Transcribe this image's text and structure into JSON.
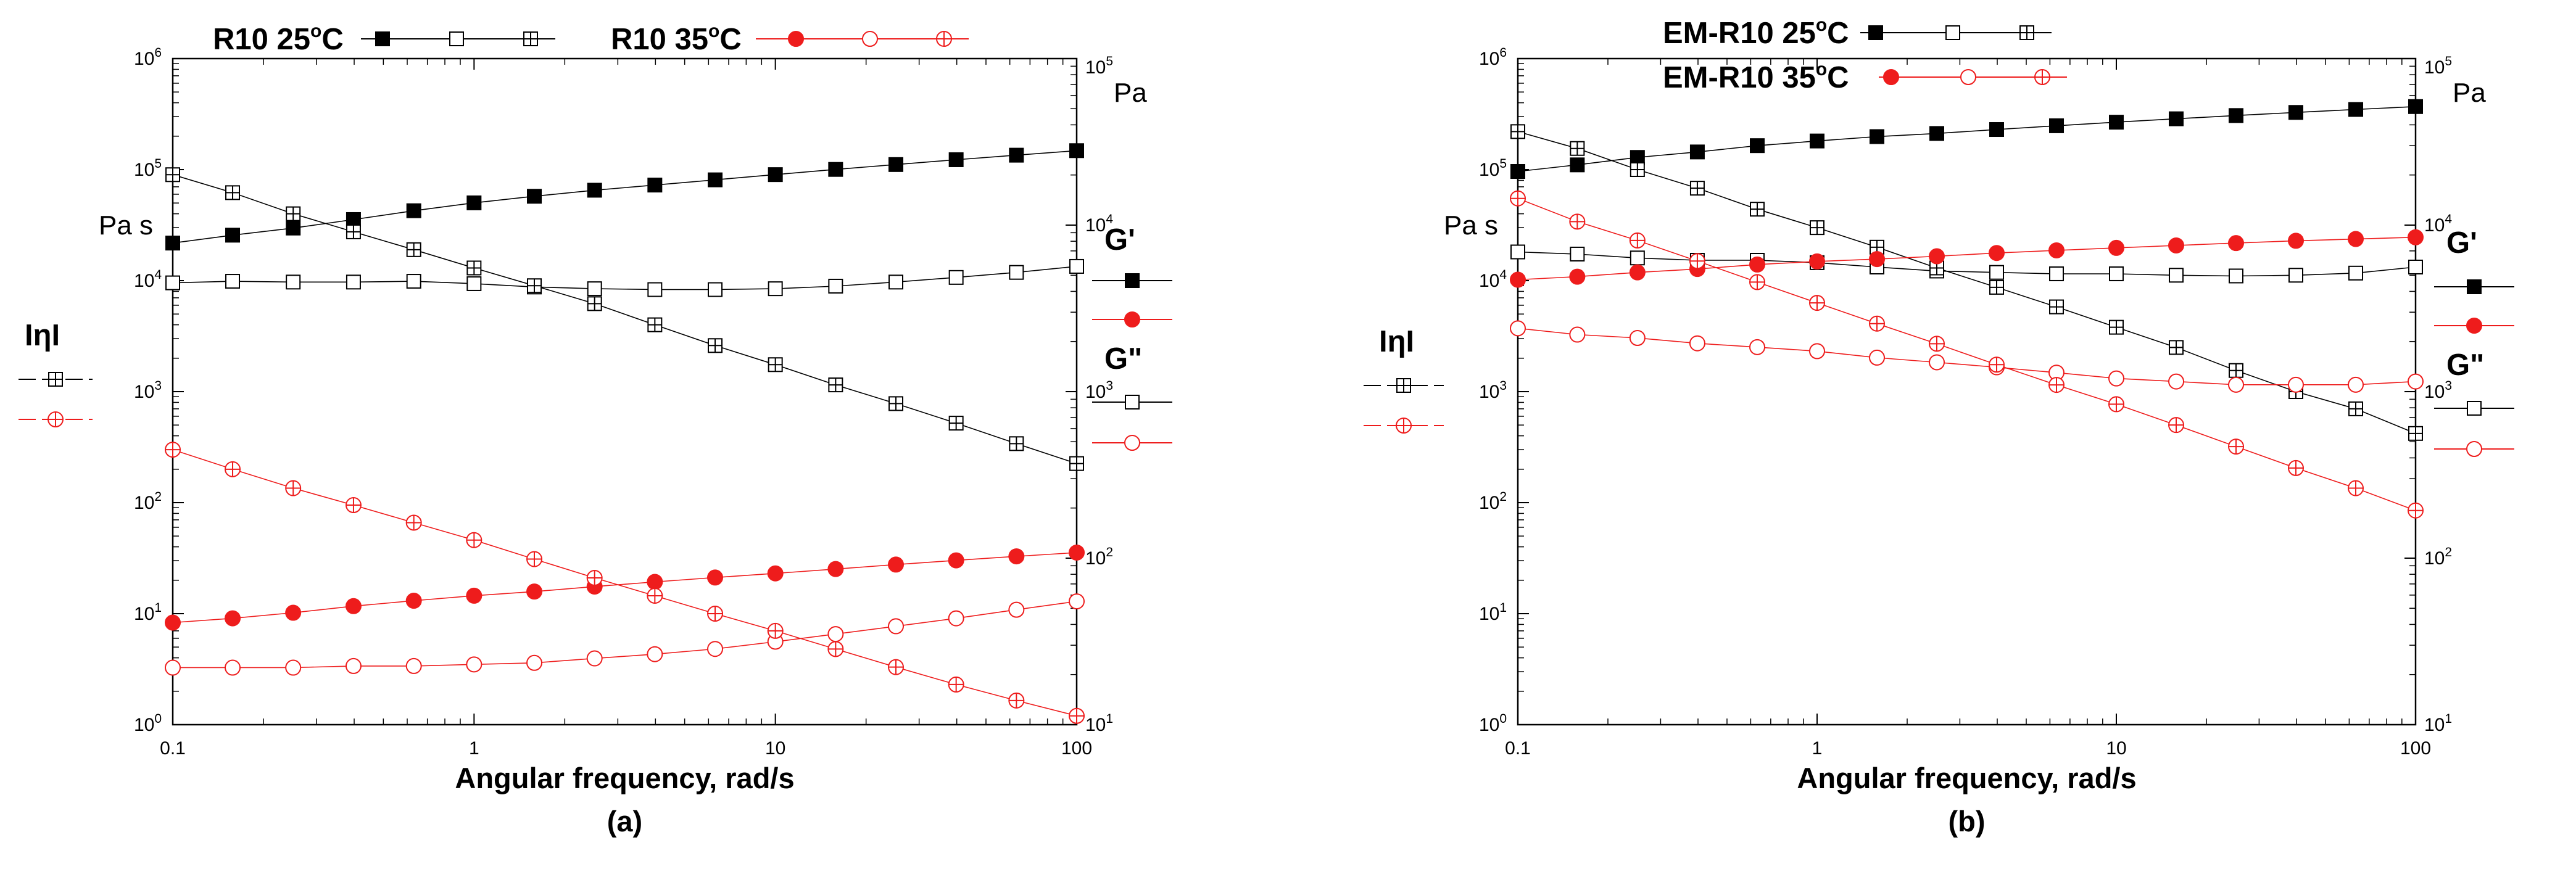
{
  "chart_data": [
    {
      "type": "line",
      "panel_label": "(a)",
      "xlabel": "Angular frequency, rad/s",
      "x_scale": "log",
      "xlim": [
        0.1,
        100
      ],
      "x_ticks": [
        0.1,
        1,
        10,
        100
      ],
      "x_tick_labels": [
        "0.1",
        "1",
        "10",
        "100"
      ],
      "left_axis": {
        "unit": "Pa s",
        "scale": "log",
        "ylim": [
          1,
          1000000
        ],
        "tick_values": [
          1,
          10,
          100,
          1000,
          10000,
          100000,
          1000000
        ],
        "tick_base": "10",
        "tick_exponents": [
          "0",
          "1",
          "2",
          "3",
          "4",
          "5",
          "6"
        ]
      },
      "right_axis": {
        "unit": "Pa",
        "scale": "log",
        "ylim": [
          10,
          100000
        ],
        "tick_values": [
          10,
          100,
          1000,
          10000,
          100000
        ],
        "tick_base": "10",
        "tick_exponents": [
          "1",
          "2",
          "3",
          "4",
          "5"
        ]
      },
      "legend_top": [
        {
          "label": "R10 25",
          "deg": "o",
          "unit": "C",
          "color": "#000000"
        },
        {
          "label": "R10 35",
          "deg": "o",
          "unit": "C",
          "color": "#ee1c1c"
        }
      ],
      "legend_side": {
        "eta_label": "IηI",
        "gp_label": "G'",
        "gpp_label": "G\""
      },
      "x": [
        0.1,
        0.158,
        0.251,
        0.398,
        0.631,
        1,
        1.585,
        2.512,
        3.981,
        6.31,
        10,
        15.85,
        25.12,
        39.81,
        63.1,
        100
      ],
      "series": [
        {
          "name": "R10 25°C G'",
          "axis": "right",
          "color": "#000000",
          "marker": "square-filled",
          "values": [
            7800,
            8700,
            9600,
            10800,
            12200,
            13600,
            14900,
            16200,
            17400,
            18700,
            20100,
            21600,
            23100,
            24700,
            26300,
            28000
          ]
        },
        {
          "name": "R10 25°C G\"",
          "axis": "right",
          "color": "#000000",
          "marker": "square-open",
          "values": [
            4500,
            4600,
            4550,
            4550,
            4600,
            4450,
            4250,
            4150,
            4100,
            4100,
            4150,
            4300,
            4550,
            4850,
            5200,
            5650
          ]
        },
        {
          "name": "R10 25°C |η*|",
          "axis": "left",
          "color": "#000000",
          "marker": "square-cross",
          "values": [
            90000,
            62000,
            40000,
            27500,
            19000,
            13000,
            9000,
            6200,
            4000,
            2600,
            1750,
            1150,
            780,
            520,
            340,
            225
          ]
        },
        {
          "name": "R10 35°C G'",
          "axis": "right",
          "color": "#ee1c1c",
          "marker": "circle-filled",
          "values": [
            41,
            43.5,
            47,
            51.5,
            55.5,
            59.5,
            63,
            67.5,
            72,
            76.5,
            81,
            86,
            91.5,
            97,
            102.5,
            108
          ]
        },
        {
          "name": "R10 35°C G\"",
          "axis": "right",
          "color": "#ee1c1c",
          "marker": "circle-open",
          "values": [
            22,
            22,
            22,
            22.5,
            22.5,
            23,
            23.5,
            25,
            26.5,
            28.5,
            31.5,
            35,
            39,
            43.5,
            49,
            55
          ]
        },
        {
          "name": "R10 35°C |η*|",
          "axis": "left",
          "color": "#ee1c1c",
          "marker": "circle-cross",
          "values": [
            300,
            200,
            135,
            95,
            66,
            46,
            31,
            21,
            14.5,
            10,
            7,
            4.8,
            3.3,
            2.3,
            1.65,
            1.2
          ]
        }
      ]
    },
    {
      "type": "line",
      "panel_label": "(b)",
      "xlabel": "Angular frequency, rad/s",
      "x_scale": "log",
      "xlim": [
        0.1,
        100
      ],
      "x_ticks": [
        0.1,
        1,
        10,
        100
      ],
      "x_tick_labels": [
        "0.1",
        "1",
        "10",
        "100"
      ],
      "left_axis": {
        "unit": "Pa s",
        "scale": "log",
        "ylim": [
          1,
          1000000
        ],
        "tick_values": [
          1,
          10,
          100,
          1000,
          10000,
          100000,
          1000000
        ],
        "tick_base": "10",
        "tick_exponents": [
          "0",
          "1",
          "2",
          "3",
          "4",
          "5",
          "6"
        ]
      },
      "right_axis": {
        "unit": "Pa",
        "scale": "log",
        "ylim": [
          10,
          100000
        ],
        "tick_values": [
          10,
          100,
          1000,
          10000,
          100000
        ],
        "tick_base": "10",
        "tick_exponents": [
          "1",
          "2",
          "3",
          "4",
          "5"
        ]
      },
      "legend_top": [
        {
          "label": "EM-R10 25",
          "deg": "o",
          "unit": "C",
          "color": "#000000"
        },
        {
          "label": "EM-R10 35",
          "deg": "o",
          "unit": "C",
          "color": "#ee1c1c"
        }
      ],
      "legend_side": {
        "eta_label": "IηI",
        "gp_label": "G'",
        "gpp_label": "G\""
      },
      "x": [
        0.1,
        0.158,
        0.251,
        0.398,
        0.631,
        1,
        1.585,
        2.512,
        3.981,
        6.31,
        10,
        15.85,
        25.12,
        39.81,
        63.1,
        100
      ],
      "series": [
        {
          "name": "EM-R10 25°C G'",
          "axis": "right",
          "color": "#000000",
          "marker": "square-filled",
          "values": [
            21000,
            23000,
            25500,
            27500,
            30000,
            32000,
            34000,
            35500,
            37500,
            39500,
            41500,
            43500,
            45500,
            47500,
            49500,
            51500
          ]
        },
        {
          "name": "EM-R10 25°C G\"",
          "axis": "right",
          "color": "#000000",
          "marker": "square-open",
          "values": [
            6900,
            6700,
            6350,
            6150,
            6150,
            5950,
            5600,
            5300,
            5200,
            5100,
            5100,
            5000,
            4950,
            5000,
            5150,
            5600
          ]
        },
        {
          "name": "EM-R10 25°C |η*|",
          "axis": "left",
          "color": "#000000",
          "marker": "square-cross",
          "values": [
            220000,
            155000,
            100000,
            68000,
            44000,
            30000,
            20000,
            13000,
            8700,
            5800,
            3800,
            2500,
            1550,
            1000,
            700,
            420
          ]
        },
        {
          "name": "EM-R10 35°C G'",
          "axis": "right",
          "color": "#ee1c1c",
          "marker": "circle-filled",
          "values": [
            4700,
            4900,
            5200,
            5450,
            5800,
            6050,
            6250,
            6500,
            6800,
            7050,
            7300,
            7550,
            7800,
            8050,
            8250,
            8450
          ]
        },
        {
          "name": "EM-R10 35°C G\"",
          "axis": "right",
          "color": "#ee1c1c",
          "marker": "circle-open",
          "values": [
            2400,
            2200,
            2100,
            1950,
            1850,
            1750,
            1600,
            1500,
            1400,
            1300,
            1200,
            1150,
            1100,
            1100,
            1100,
            1150
          ]
        },
        {
          "name": "EM-R10 35°C |η*|",
          "axis": "left",
          "color": "#ee1c1c",
          "marker": "circle-cross",
          "values": [
            55000,
            34000,
            23000,
            15000,
            9700,
            6300,
            4100,
            2700,
            1750,
            1150,
            770,
            500,
            320,
            205,
            135,
            85
          ]
        }
      ]
    }
  ]
}
